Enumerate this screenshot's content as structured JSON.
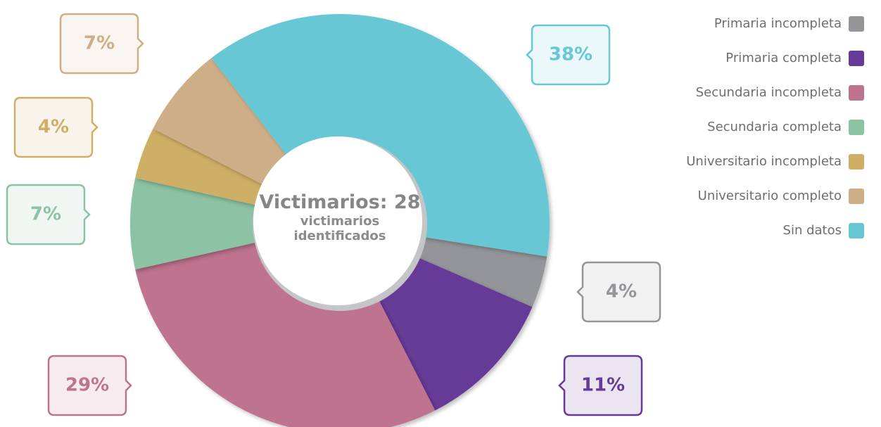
{
  "chart_data": {
    "type": "donut",
    "center_title": "Victimarios: 28",
    "center_subtitle": "victimarios identificados",
    "categories": [
      "Primaria incompleta",
      "Primaria completa",
      "Secundaria incompleta",
      "Secundaria completa",
      "Universitario incompleta",
      "Universitario completo",
      "Sin datos"
    ],
    "values": [
      4,
      11,
      29,
      7,
      4,
      7,
      38
    ],
    "value_labels": [
      "4%",
      "11%",
      "29%",
      "7%",
      "4%",
      "7%",
      "38%"
    ],
    "colors": [
      "#939598",
      "#663a97",
      "#be738f",
      "#8bc3a4",
      "#cfae66",
      "#cdae87",
      "#68c7d5"
    ],
    "legend": "top-right"
  }
}
